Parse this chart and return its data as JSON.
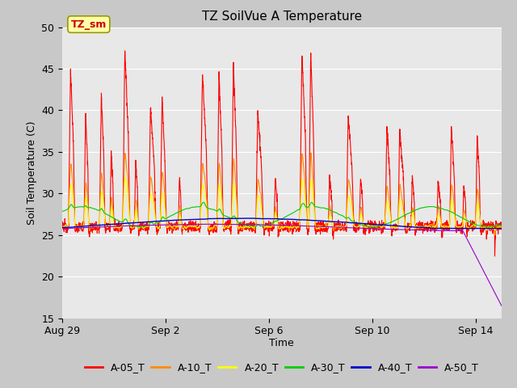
{
  "title": "TZ SoilVue A Temperature",
  "ylabel": "Soil Temperature (C)",
  "xlabel": "Time",
  "ylim": [
    15,
    50
  ],
  "plot_bg": "#e8e8e8",
  "series_colors": {
    "A-05_T": "#ff0000",
    "A-10_T": "#ff8c00",
    "A-20_T": "#ffff00",
    "A-30_T": "#00cc00",
    "A-40_T": "#0000cc",
    "A-50_T": "#9900cc"
  },
  "xtick_labels": [
    "Aug 29",
    "Sep 2",
    "Sep 6",
    "Sep 10",
    "Sep 14"
  ],
  "xtick_positions": [
    0,
    4,
    8,
    12,
    16
  ],
  "ytick_labels": [
    "15",
    "20",
    "25",
    "30",
    "35",
    "40",
    "45",
    "50"
  ],
  "ytick_positions": [
    15,
    20,
    25,
    30,
    35,
    40,
    45,
    50
  ],
  "annotation_text": "TZ_sm",
  "grid_color": "#ffffff",
  "title_fontsize": 11,
  "axis_label_fontsize": 9,
  "tick_fontsize": 9,
  "legend_fontsize": 9
}
